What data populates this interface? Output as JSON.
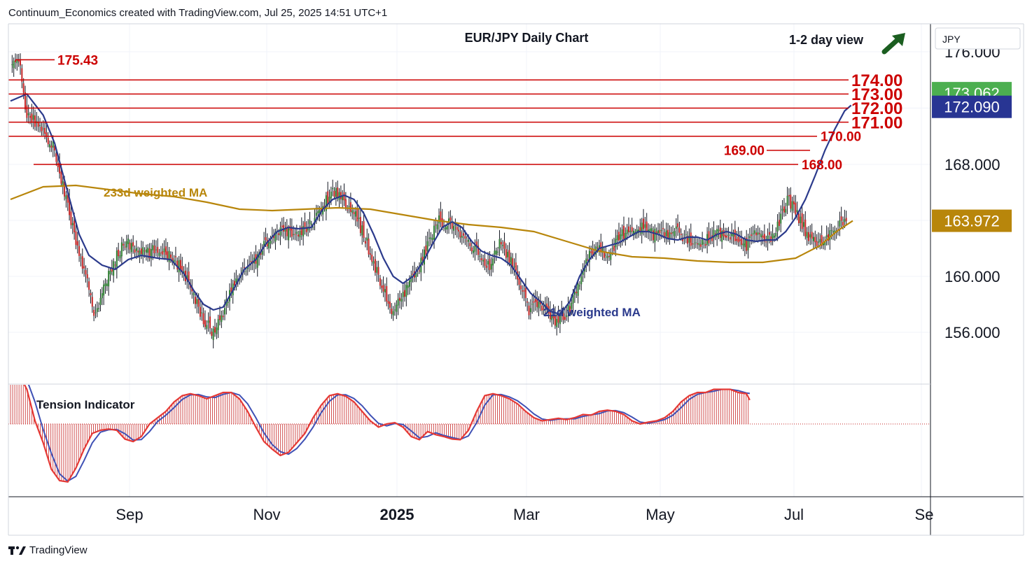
{
  "header": {
    "created_by": "Continuum_Economics created with TradingView.com, Jul 25, 2025 14:51 UTC+1"
  },
  "footer": {
    "brand": "TradingView"
  },
  "chart_data": {
    "type": "candlestick",
    "title": "EUR/JPY Daily Chart",
    "subtitle": "1-2 day view",
    "currency_label": "JPY",
    "y_ticks": [
      "176.000",
      "168.000",
      "160.000",
      "156.000"
    ],
    "x_ticks": [
      "Sep",
      "Nov",
      "2025",
      "Mar",
      "May",
      "Jul",
      "Se"
    ],
    "levels": [
      {
        "value": 175.43,
        "label": "175.43"
      },
      {
        "value": 174.0,
        "label": "174.00"
      },
      {
        "value": 173.0,
        "label": "173.00"
      },
      {
        "value": 172.0,
        "label": "172.00"
      },
      {
        "value": 171.0,
        "label": "171.00"
      },
      {
        "value": 170.0,
        "label": "170.00"
      },
      {
        "value": 169.0,
        "label": "169.00"
      },
      {
        "value": 168.0,
        "label": "168.00"
      }
    ],
    "price_badges": [
      {
        "label": "173.062",
        "color": "#4caf50",
        "value": 173.062
      },
      {
        "label": "172.090",
        "color": "#283593",
        "value": 172.09
      },
      {
        "label": "163.972",
        "color": "#b8860b",
        "value": 163.972
      }
    ],
    "ma_labels": {
      "ma21": "21d weighted MA",
      "ma233": "233d weighted MA"
    },
    "indicator_label": "Tension Indicator",
    "view_arrow": "up-right-arrow-icon",
    "colors": {
      "up": "#2e7d32",
      "down": "#c62828",
      "level": "#cc0000",
      "ma21": "#2b3a8c",
      "ma233": "#b8860b",
      "arrow": "#1b5e20"
    },
    "price_path": [
      [
        0,
        174.8
      ],
      [
        5,
        175.43
      ],
      [
        10,
        171.5
      ],
      [
        20,
        170.5
      ],
      [
        27,
        169
      ],
      [
        35,
        165
      ],
      [
        42,
        161.5
      ],
      [
        47,
        159.5
      ],
      [
        51,
        157.3
      ],
      [
        57,
        159
      ],
      [
        63,
        161
      ],
      [
        70,
        162.5
      ],
      [
        77,
        161.8
      ],
      [
        85,
        161.7
      ],
      [
        92,
        162
      ],
      [
        100,
        161.3
      ],
      [
        107,
        160
      ],
      [
        112,
        158.5
      ],
      [
        118,
        157
      ],
      [
        124,
        156
      ],
      [
        130,
        157.5
      ],
      [
        137,
        159.5
      ],
      [
        143,
        160.5
      ],
      [
        150,
        161
      ],
      [
        156,
        162.5
      ],
      [
        163,
        163
      ],
      [
        170,
        163.2
      ],
      [
        177,
        163
      ],
      [
        184,
        163.8
      ],
      [
        191,
        165
      ],
      [
        197,
        166.2
      ],
      [
        204,
        165.5
      ],
      [
        210,
        164.5
      ],
      [
        216,
        163
      ],
      [
        222,
        161
      ],
      [
        228,
        159
      ],
      [
        233,
        157.5
      ],
      [
        239,
        158.2
      ],
      [
        244,
        159.5
      ],
      [
        251,
        161
      ],
      [
        256,
        162.5
      ],
      [
        262,
        164
      ],
      [
        268,
        163.8
      ],
      [
        274,
        163
      ],
      [
        280,
        162.5
      ],
      [
        287,
        161.5
      ],
      [
        293,
        160.5
      ],
      [
        299,
        162.5
      ],
      [
        305,
        161.3
      ],
      [
        311,
        159.5
      ],
      [
        317,
        157.5
      ],
      [
        323,
        158
      ],
      [
        329,
        157.5
      ],
      [
        334,
        156.7
      ],
      [
        339,
        157.3
      ],
      [
        344,
        158.3
      ],
      [
        352,
        161
      ],
      [
        358,
        162.3
      ],
      [
        365,
        161.5
      ],
      [
        371,
        162.5
      ],
      [
        378,
        163.5
      ],
      [
        385,
        163.5
      ],
      [
        392,
        163
      ],
      [
        400,
        163
      ],
      [
        408,
        163.2
      ],
      [
        416,
        162.5
      ],
      [
        423,
        162.5
      ],
      [
        430,
        163
      ],
      [
        437,
        163.2
      ],
      [
        444,
        162.8
      ],
      [
        450,
        162.2
      ],
      [
        456,
        163
      ],
      [
        463,
        162.5
      ],
      [
        469,
        163.5
      ],
      [
        475,
        165.5
      ],
      [
        481,
        164.5
      ],
      [
        487,
        163
      ],
      [
        493,
        162.5
      ],
      [
        499,
        162.7
      ],
      [
        505,
        163.2
      ],
      [
        511,
        164.3
      ]
    ],
    "ma21_path": [
      [
        0,
        172.5
      ],
      [
        10,
        173
      ],
      [
        20,
        171.5
      ],
      [
        27,
        169.5
      ],
      [
        35,
        166
      ],
      [
        42,
        163
      ],
      [
        48,
        161.5
      ],
      [
        56,
        160.8
      ],
      [
        64,
        160.5
      ],
      [
        72,
        161.2
      ],
      [
        80,
        161.5
      ],
      [
        90,
        161.3
      ],
      [
        98,
        161.2
      ],
      [
        106,
        160.2
      ],
      [
        112,
        159
      ],
      [
        118,
        158
      ],
      [
        124,
        157.6
      ],
      [
        130,
        157.8
      ],
      [
        136,
        159
      ],
      [
        143,
        160.5
      ],
      [
        150,
        161.2
      ],
      [
        156,
        162.3
      ],
      [
        163,
        163.2
      ],
      [
        170,
        163.5
      ],
      [
        176,
        163.4
      ],
      [
        184,
        163.5
      ],
      [
        191,
        164.8
      ],
      [
        197,
        165.5
      ],
      [
        204,
        165.8
      ],
      [
        210,
        165.5
      ],
      [
        216,
        164.5
      ],
      [
        222,
        163
      ],
      [
        228,
        161.3
      ],
      [
        234,
        160
      ],
      [
        240,
        159.5
      ],
      [
        246,
        160
      ],
      [
        252,
        161
      ],
      [
        258,
        162.3
      ],
      [
        264,
        163.5
      ],
      [
        270,
        163.9
      ],
      [
        276,
        163.5
      ],
      [
        282,
        162.5
      ],
      [
        288,
        161.8
      ],
      [
        294,
        161.5
      ],
      [
        300,
        161.3
      ],
      [
        306,
        160.8
      ],
      [
        312,
        159.8
      ],
      [
        318,
        158.8
      ],
      [
        324,
        158.2
      ],
      [
        330,
        157.5
      ],
      [
        336,
        157.3
      ],
      [
        342,
        158.2
      ],
      [
        348,
        160
      ],
      [
        354,
        161.2
      ],
      [
        360,
        162
      ],
      [
        366,
        162.2
      ],
      [
        372,
        162.4
      ],
      [
        378,
        162.8
      ],
      [
        384,
        163.2
      ],
      [
        390,
        163.2
      ],
      [
        396,
        163
      ],
      [
        402,
        162.7
      ],
      [
        408,
        162.6
      ],
      [
        414,
        162.8
      ],
      [
        420,
        162.8
      ],
      [
        426,
        162.6
      ],
      [
        432,
        163
      ],
      [
        438,
        163.2
      ],
      [
        444,
        163
      ],
      [
        450,
        162.6
      ],
      [
        456,
        162.5
      ],
      [
        462,
        162.6
      ],
      [
        468,
        162.6
      ],
      [
        474,
        163.2
      ],
      [
        480,
        164.2
      ],
      [
        486,
        165.5
      ],
      [
        492,
        167.2
      ],
      [
        498,
        169
      ],
      [
        504,
        170.5
      ],
      [
        510,
        171.8
      ],
      [
        514,
        172.2
      ]
    ],
    "ma233_path": [
      [
        0,
        165.5
      ],
      [
        20,
        166.4
      ],
      [
        40,
        166.5
      ],
      [
        60,
        166.2
      ],
      [
        80,
        165.9
      ],
      [
        100,
        165.7
      ],
      [
        120,
        165.3
      ],
      [
        140,
        164.8
      ],
      [
        160,
        164.7
      ],
      [
        180,
        164.8
      ],
      [
        200,
        164.9
      ],
      [
        220,
        164.8
      ],
      [
        240,
        164.4
      ],
      [
        260,
        164
      ],
      [
        280,
        163.7
      ],
      [
        300,
        163.5
      ],
      [
        320,
        163.2
      ],
      [
        340,
        162.5
      ],
      [
        360,
        161.8
      ],
      [
        380,
        161.4
      ],
      [
        400,
        161.3
      ],
      [
        420,
        161.1
      ],
      [
        440,
        161
      ],
      [
        460,
        161
      ],
      [
        480,
        161.3
      ],
      [
        495,
        162.2
      ],
      [
        505,
        163.2
      ],
      [
        515,
        163.97
      ]
    ],
    "tension_path": [
      [
        0,
        0.92
      ],
      [
        5,
        0.8
      ],
      [
        10,
        0.55
      ],
      [
        15,
        0.05
      ],
      [
        20,
        -0.3
      ],
      [
        25,
        -0.72
      ],
      [
        30,
        -0.9
      ],
      [
        35,
        -0.92
      ],
      [
        40,
        -0.7
      ],
      [
        45,
        -0.4
      ],
      [
        50,
        -0.15
      ],
      [
        55,
        -0.1
      ],
      [
        60,
        -0.08
      ],
      [
        65,
        -0.1
      ],
      [
        70,
        -0.24
      ],
      [
        75,
        -0.28
      ],
      [
        80,
        -0.2
      ],
      [
        85,
        0.0
      ],
      [
        90,
        0.1
      ],
      [
        95,
        0.2
      ],
      [
        100,
        0.35
      ],
      [
        105,
        0.45
      ],
      [
        110,
        0.48
      ],
      [
        115,
        0.45
      ],
      [
        120,
        0.4
      ],
      [
        125,
        0.45
      ],
      [
        130,
        0.5
      ],
      [
        135,
        0.5
      ],
      [
        140,
        0.4
      ],
      [
        145,
        0.2
      ],
      [
        150,
        -0.05
      ],
      [
        155,
        -0.28
      ],
      [
        160,
        -0.4
      ],
      [
        165,
        -0.5
      ],
      [
        170,
        -0.45
      ],
      [
        175,
        -0.3
      ],
      [
        180,
        -0.15
      ],
      [
        185,
        0.1
      ],
      [
        190,
        0.3
      ],
      [
        195,
        0.45
      ],
      [
        200,
        0.48
      ],
      [
        205,
        0.44
      ],
      [
        210,
        0.35
      ],
      [
        215,
        0.2
      ],
      [
        220,
        0.05
      ],
      [
        225,
        -0.05
      ],
      [
        230,
        0.0
      ],
      [
        235,
        0.02
      ],
      [
        240,
        -0.05
      ],
      [
        245,
        -0.2
      ],
      [
        250,
        -0.25
      ],
      [
        255,
        -0.12
      ],
      [
        260,
        -0.17
      ],
      [
        265,
        -0.2
      ],
      [
        270,
        -0.24
      ],
      [
        275,
        -0.25
      ],
      [
        280,
        -0.1
      ],
      [
        285,
        0.2
      ],
      [
        290,
        0.45
      ],
      [
        295,
        0.48
      ],
      [
        300,
        0.45
      ],
      [
        305,
        0.4
      ],
      [
        310,
        0.32
      ],
      [
        315,
        0.2
      ],
      [
        320,
        0.1
      ],
      [
        325,
        0.05
      ],
      [
        330,
        0.07
      ],
      [
        335,
        0.09
      ],
      [
        340,
        0.07
      ],
      [
        345,
        0.1
      ],
      [
        350,
        0.15
      ],
      [
        355,
        0.14
      ],
      [
        360,
        0.2
      ],
      [
        365,
        0.22
      ],
      [
        370,
        0.2
      ],
      [
        375,
        0.15
      ],
      [
        380,
        0.05
      ],
      [
        385,
        0.0
      ],
      [
        390,
        0.03
      ],
      [
        395,
        0.05
      ],
      [
        400,
        0.1
      ],
      [
        405,
        0.2
      ],
      [
        410,
        0.35
      ],
      [
        415,
        0.45
      ],
      [
        420,
        0.5
      ],
      [
        425,
        0.5
      ],
      [
        430,
        0.55
      ],
      [
        435,
        0.55
      ],
      [
        440,
        0.55
      ],
      [
        445,
        0.5
      ],
      [
        450,
        0.48
      ],
      [
        452,
        0.38
      ]
    ]
  }
}
